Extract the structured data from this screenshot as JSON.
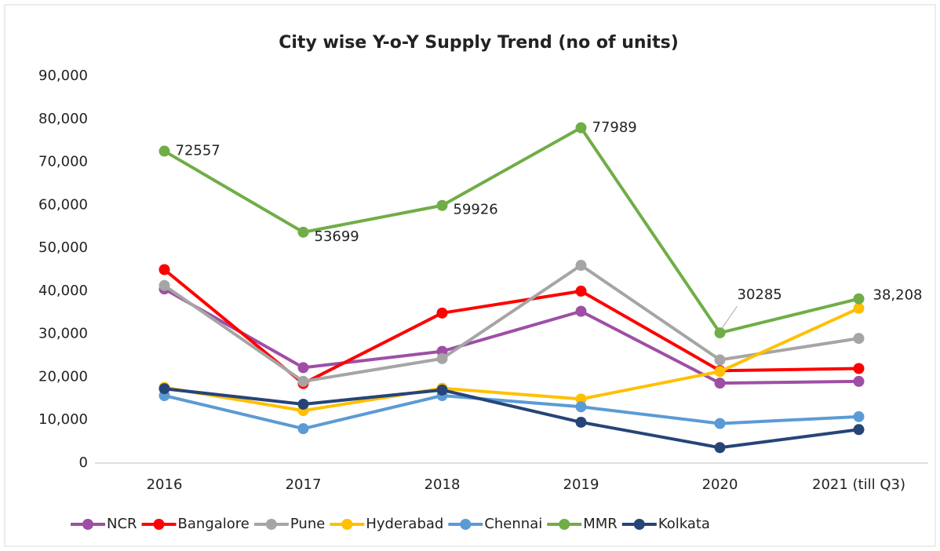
{
  "chart_data": {
    "type": "line",
    "title": "City wise Y-o-Y Supply Trend (no of units)",
    "categories": [
      "2016",
      "2017",
      "2018",
      "2019",
      "2020",
      "2021 (till Q3)"
    ],
    "ylim": [
      0,
      90000
    ],
    "yticks": [
      0,
      {
        "value": 10000,
        "label": "10,000"
      },
      {
        "value": 20000,
        "label": "20,000"
      },
      {
        "value": 30000,
        "label": "30,000"
      },
      {
        "value": 40000,
        "label": "40,000"
      },
      {
        "value": 50000,
        "label": "50,000"
      },
      {
        "value": 60000,
        "label": "60,000"
      },
      {
        "value": 70000,
        "label": "70,000"
      },
      {
        "value": 80000,
        "label": "80,000"
      },
      {
        "value": 90000,
        "label": "90,000"
      }
    ],
    "grid": false,
    "legend": "bottom",
    "series": [
      {
        "name": "NCR",
        "color": "#9e4fa5",
        "values": [
          40500,
          22200,
          26000,
          35300,
          18600,
          19000
        ]
      },
      {
        "name": "Bangalore",
        "color": "#ff0000",
        "values": [
          45000,
          18500,
          34900,
          40000,
          21500,
          22000
        ]
      },
      {
        "name": "Pune",
        "color": "#a5a5a5",
        "values": [
          41300,
          19000,
          24300,
          46000,
          24000,
          29000
        ]
      },
      {
        "name": "Hyderabad",
        "color": "#ffc000",
        "values": [
          17600,
          12200,
          17400,
          14900,
          21300,
          36000
        ]
      },
      {
        "name": "Chennai",
        "color": "#5b9bd5",
        "values": [
          15700,
          8000,
          15700,
          13100,
          9200,
          10800
        ]
      },
      {
        "name": "MMR",
        "color": "#70ad47",
        "values": [
          72557,
          53699,
          59926,
          77989,
          30285,
          38208
        ],
        "value_labels": [
          "72557",
          "53699",
          "59926",
          "77989",
          "30285",
          "38,208"
        ]
      },
      {
        "name": "Kolkata",
        "color": "#264478",
        "values": [
          17300,
          13700,
          17000,
          9500,
          3600,
          7800
        ]
      }
    ]
  }
}
